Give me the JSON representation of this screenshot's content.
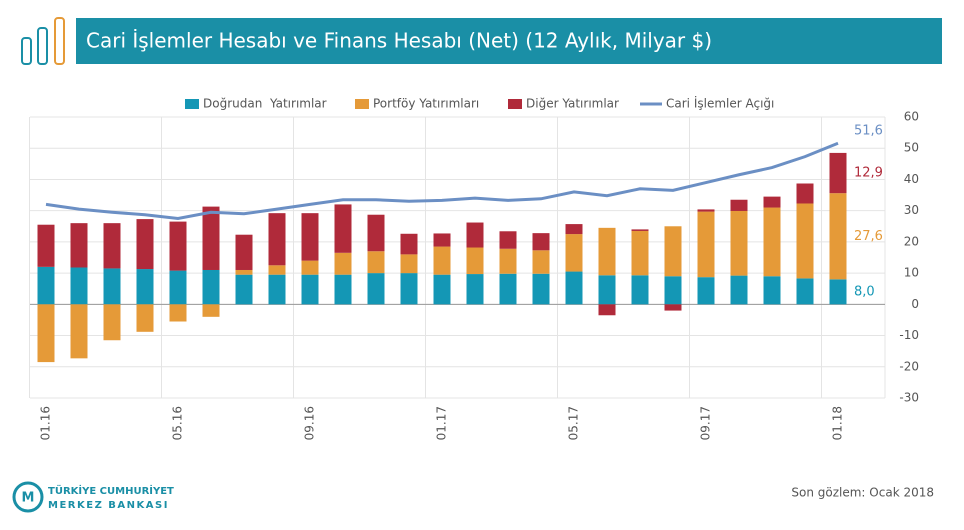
{
  "chart_data": {
    "type": "bar",
    "title": "Cari İşlemler Hesabı ve Finans Hesabı (Net) (12 Aylık, Milyar $)",
    "categories": [
      "01.16",
      null,
      null,
      null,
      "05.16",
      null,
      null,
      null,
      "09.16",
      null,
      null,
      null,
      "01.17",
      null,
      null,
      null,
      "05.17",
      null,
      null,
      null,
      "09.17",
      null,
      null,
      null,
      "01.18"
    ],
    "series": [
      {
        "name": "Doğrudan  Yatırımlar",
        "color": "#1497b5",
        "values": [
          12,
          11.8,
          11.5,
          11.3,
          10.8,
          11,
          9.5,
          9.5,
          9.5,
          9.5,
          10,
          10,
          9.5,
          9.7,
          9.8,
          9.8,
          10.5,
          9.3,
          9.3,
          9,
          8.7,
          9.2,
          9,
          8.3,
          8.0
        ],
        "value_labels": [
          null,
          null,
          null,
          null,
          null,
          null,
          null,
          null,
          null,
          null,
          null,
          null,
          null,
          null,
          null,
          null,
          null,
          null,
          null,
          null,
          null,
          null,
          null,
          null,
          "8,0"
        ]
      },
      {
        "name": "Portföy Yatırımları",
        "color": "#e59a38",
        "values": [
          -18.5,
          -17.3,
          -11.5,
          -8.8,
          -5.5,
          -4,
          1.5,
          3,
          4.5,
          7,
          7,
          6,
          9,
          8.5,
          8,
          7.5,
          12,
          15.2,
          14.2,
          16,
          21,
          20.7,
          22,
          24,
          27.6
        ],
        "value_labels": [
          null,
          null,
          null,
          null,
          null,
          null,
          null,
          null,
          null,
          null,
          null,
          null,
          null,
          null,
          null,
          null,
          null,
          null,
          null,
          null,
          null,
          null,
          null,
          null,
          "27,6"
        ]
      },
      {
        "name": "Diğer Yatırımlar",
        "color": "#b02a3a",
        "values": [
          13.5,
          14.2,
          14.5,
          16,
          15.7,
          20.3,
          11.3,
          16.7,
          15.2,
          15.5,
          11.7,
          6.6,
          4.2,
          8,
          5.6,
          5.5,
          3.2,
          -3.5,
          0.5,
          -2,
          0.7,
          3.6,
          3.5,
          6.4,
          12.9
        ],
        "value_labels": [
          null,
          null,
          null,
          null,
          null,
          null,
          null,
          null,
          null,
          null,
          null,
          null,
          null,
          null,
          null,
          null,
          null,
          null,
          null,
          null,
          null,
          null,
          null,
          null,
          "12,9"
        ]
      },
      {
        "name": "Cari İşlemler Açığı",
        "type": "line",
        "color": "#6b8fc4",
        "values": [
          32,
          30.5,
          29.5,
          28.7,
          27.5,
          29.5,
          29,
          30.5,
          32,
          33.5,
          33.5,
          33,
          33.3,
          34,
          33.3,
          33.8,
          36,
          34.8,
          37,
          36.5,
          39,
          41.5,
          43.8,
          47.3,
          51.6
        ],
        "value_labels": [
          null,
          null,
          null,
          null,
          null,
          null,
          null,
          null,
          null,
          null,
          null,
          null,
          null,
          null,
          null,
          null,
          null,
          null,
          null,
          null,
          null,
          null,
          null,
          null,
          "51,6"
        ]
      }
    ],
    "ylim": [
      -30,
      60
    ],
    "yticks": [
      -30,
      -20,
      -10,
      0,
      10,
      20,
      30,
      40,
      50,
      60
    ],
    "grid": true
  },
  "footer": {
    "bank": [
      "TÜRKİYE CUMHURİYET",
      "MERKEZ BANKASI"
    ],
    "note": "Son gözlem: Ocak 2018"
  }
}
